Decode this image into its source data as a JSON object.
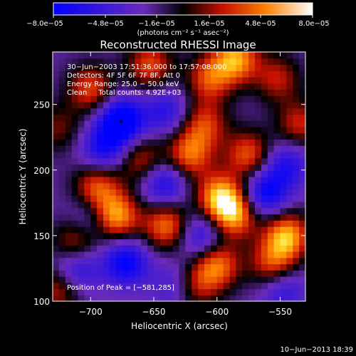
{
  "chart_data": {
    "type": "heatmap",
    "title": "Reconstructed RHESSI Image",
    "xlabel": "Heliocentric X (arcsec)",
    "ylabel": "Heliocentric Y (arcsec)",
    "xlim": [
      -730,
      -530
    ],
    "ylim": [
      100,
      290
    ],
    "xticks": [
      -700,
      -650,
      -600,
      -550
    ],
    "yticks": [
      100,
      150,
      200,
      250
    ],
    "xtick_labels": [
      "−700",
      "−650",
      "−600",
      "−550"
    ],
    "ytick_labels": [
      "100",
      "150",
      "200",
      "250"
    ],
    "colorbar": {
      "min": -8e-05,
      "max": 8e-05,
      "tick_labels": [
        "−8.0e−05",
        "−4.8e−05",
        "−1.6e−05",
        "1.6e−05",
        "4.8e−05",
        "8.0e−05"
      ],
      "unit_label": "(photons cm⁻² s⁻¹ asec⁻²)"
    },
    "annotations": [
      "30−Jun−2003 17:51:36.000 to 17:57:08.000",
      "Detectors: 4F 5F 6F 7F 8F, Att 0",
      "Energy Range: 25.0 − 50.0 keV",
      "Clean     Total counts: 4.92E+03"
    ],
    "peak_label": "Position of Peak = [−581,285]",
    "peak_position": [
      -581,
      285
    ],
    "min_marker": [
      -676,
      237
    ],
    "sources": [
      {
        "x": -680,
        "y": 165,
        "level": 1.0
      },
      {
        "x": -695,
        "y": 188,
        "level": 0.75
      },
      {
        "x": -712,
        "y": 145,
        "level": 0.65
      },
      {
        "x": -640,
        "y": 158,
        "level": 0.85
      },
      {
        "x": -622,
        "y": 212,
        "level": 0.8
      },
      {
        "x": -610,
        "y": 235,
        "level": 0.65
      },
      {
        "x": -700,
        "y": 262,
        "level": 0.7
      },
      {
        "x": -653,
        "y": 280,
        "level": 0.7
      },
      {
        "x": -606,
        "y": 270,
        "level": 0.7
      },
      {
        "x": -585,
        "y": 285,
        "level": 0.95
      },
      {
        "x": -598,
        "y": 180,
        "level": 0.95
      },
      {
        "x": -586,
        "y": 166,
        "level": 0.9
      },
      {
        "x": -575,
        "y": 212,
        "level": 0.75
      },
      {
        "x": -600,
        "y": 128,
        "level": 0.85
      },
      {
        "x": -618,
        "y": 112,
        "level": 0.6
      },
      {
        "x": -545,
        "y": 150,
        "level": 1.0
      },
      {
        "x": -556,
        "y": 128,
        "level": 0.7
      },
      {
        "x": -725,
        "y": 110,
        "level": 0.6
      },
      {
        "x": -726,
        "y": 232,
        "level": 0.4
      },
      {
        "x": -660,
        "y": 208,
        "level": 0.6
      },
      {
        "x": -552,
        "y": 270,
        "level": 0.55
      },
      {
        "x": -535,
        "y": 235,
        "level": 0.6
      },
      {
        "x": -676,
        "y": 237,
        "level": -1.0
      },
      {
        "x": -672,
        "y": 130,
        "level": -0.75
      },
      {
        "x": -712,
        "y": 125,
        "level": -0.65
      },
      {
        "x": -642,
        "y": 190,
        "level": -0.65
      },
      {
        "x": -562,
        "y": 182,
        "level": -0.75
      },
      {
        "x": -690,
        "y": 215,
        "level": -0.6
      },
      {
        "x": -612,
        "y": 150,
        "level": -0.6
      },
      {
        "x": -545,
        "y": 205,
        "level": -0.55
      },
      {
        "x": -640,
        "y": 245,
        "level": -0.5
      },
      {
        "x": -632,
        "y": 112,
        "level": -0.45
      },
      {
        "x": -700,
        "y": 162,
        "level": -0.4
      },
      {
        "x": -548,
        "y": 110,
        "level": -0.5
      }
    ]
  },
  "footer": {
    "timestamp": "10−Jun−2013 18:39"
  }
}
